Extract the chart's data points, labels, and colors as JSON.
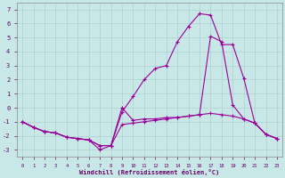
{
  "background_color": "#c8e8e8",
  "grid_color": "#b0d0d0",
  "line_color": "#990099",
  "line1_y": [
    -1.0,
    -1.4,
    -1.7,
    -1.8,
    -2.1,
    -2.2,
    -2.3,
    -3.0,
    -2.7,
    -0.3,
    0.8,
    2.0,
    2.8,
    3.0,
    4.7,
    5.8,
    6.7,
    6.6,
    4.5,
    4.5,
    2.1,
    -1.1,
    -1.9,
    -2.2
  ],
  "line2_y": [
    -1.0,
    -1.4,
    -1.7,
    -1.8,
    -2.1,
    -2.2,
    -2.3,
    -2.7,
    -2.7,
    -1.2,
    -1.1,
    -1.0,
    -0.9,
    -0.8,
    -0.7,
    -0.6,
    -0.5,
    -0.4,
    -0.5,
    -0.6,
    -0.8,
    -1.1,
    -1.9,
    -2.2
  ],
  "line3_y": [
    -1.0,
    -1.4,
    -1.7,
    -1.8,
    -2.1,
    -2.2,
    -2.3,
    -2.7,
    -2.7,
    0.0,
    -0.9,
    -0.8,
    -0.8,
    -0.7,
    -0.7,
    -0.6,
    -0.5,
    5.1,
    4.7,
    0.2,
    -0.8,
    -1.1,
    -1.9,
    -2.2
  ],
  "ylim": [
    -3.5,
    7.5
  ],
  "yticks": [
    -3,
    -2,
    -1,
    0,
    1,
    2,
    3,
    4,
    5,
    6,
    7
  ],
  "xlim": [
    -0.5,
    23.5
  ],
  "xticks": [
    0,
    1,
    2,
    3,
    4,
    5,
    6,
    7,
    8,
    9,
    10,
    11,
    12,
    13,
    14,
    15,
    16,
    17,
    18,
    19,
    20,
    21,
    22,
    23
  ],
  "xlabel": "Windchill (Refroidissement éolien,°C)"
}
